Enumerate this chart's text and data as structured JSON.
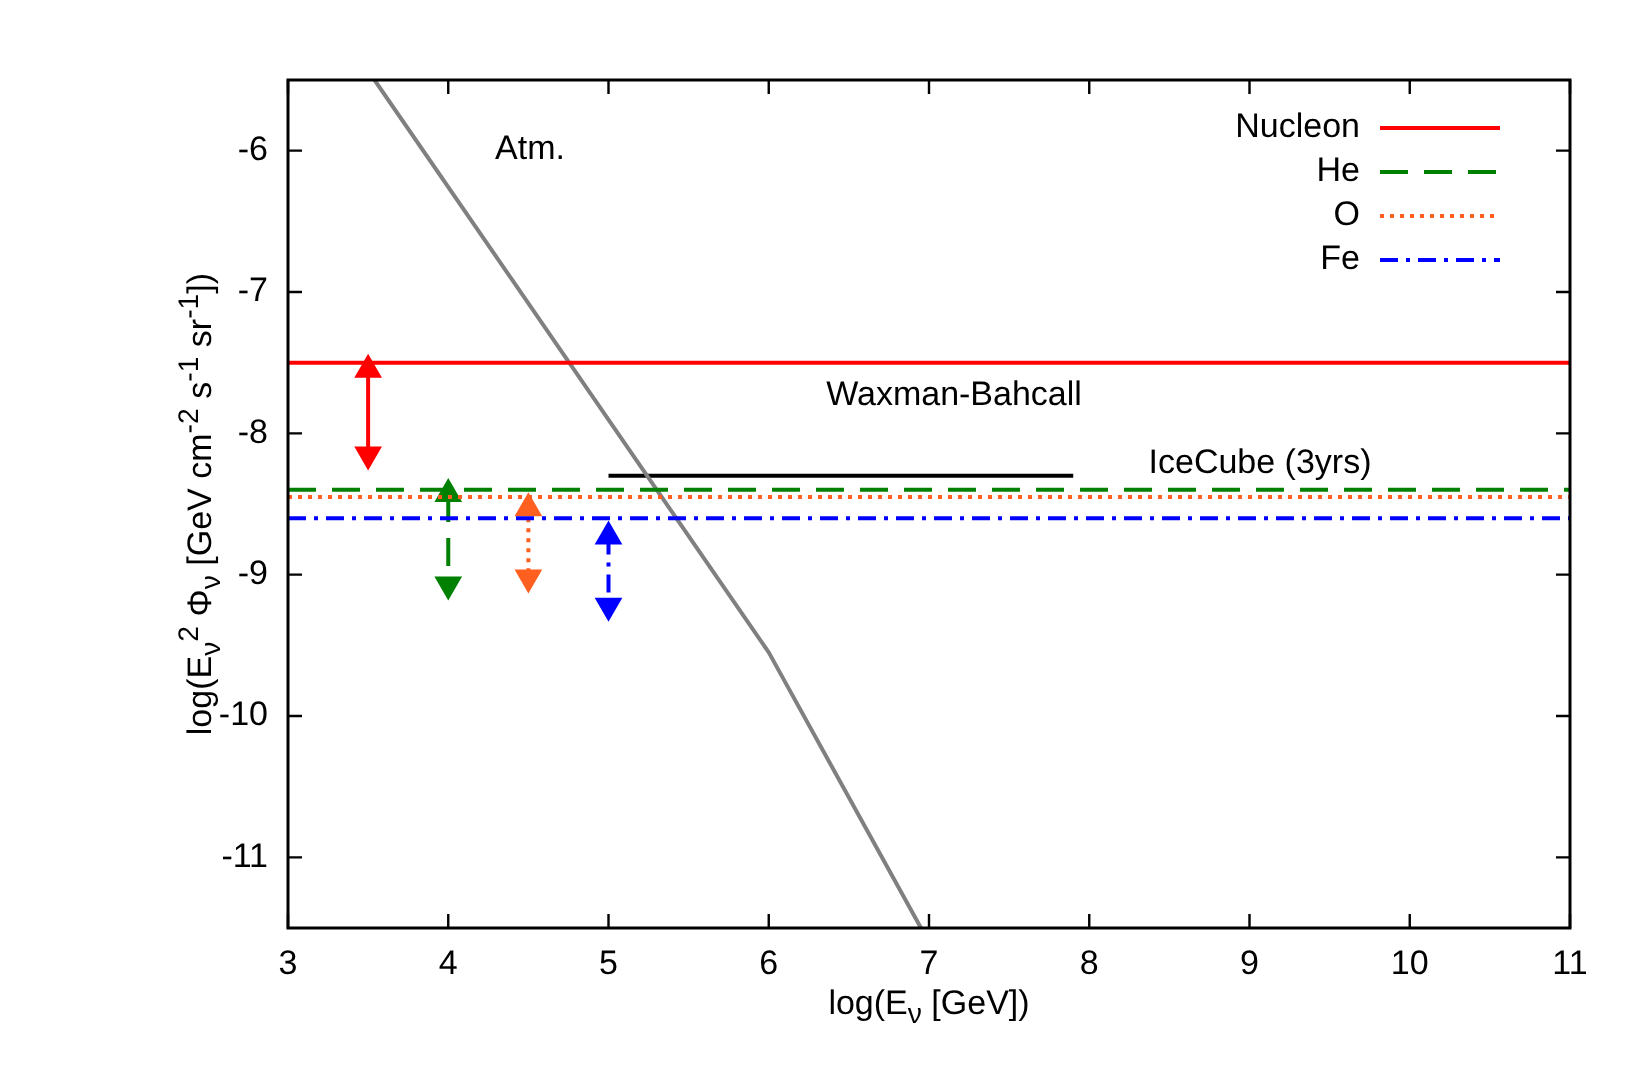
{
  "chart_data": {
    "type": "line",
    "xlabel": "log(E$_{ν}$ [GeV])",
    "ylabel": "log(E$_{ν}$$^{2}$ Φ$_{ν}$ [GeV cm$^{-2}$ s$^{-1}$ sr$^{-1}$])",
    "xlim": [
      3,
      11
    ],
    "xticks": [
      3,
      4,
      5,
      6,
      7,
      8,
      9,
      10,
      11
    ],
    "ylim": [
      -11.5,
      -5.5
    ],
    "yticks": [
      -11,
      -10,
      -9,
      -8,
      -7,
      -6
    ],
    "grid": false,
    "legend": "top right",
    "marker": "none",
    "series": [
      {
        "name": "Nucleon",
        "color": "#ff0000",
        "line_style": "solid",
        "x": [
          3,
          11
        ],
        "values": [
          -7.5,
          -7.5
        ]
      },
      {
        "name": "He",
        "color": "#008000",
        "line_style": "dashed",
        "x": [
          3,
          11
        ],
        "values": [
          -8.4,
          -8.4
        ]
      },
      {
        "name": "O",
        "color": "#ff6020",
        "line_style": "dotted",
        "x": [
          3,
          11
        ],
        "values": [
          -8.45,
          -8.45
        ]
      },
      {
        "name": "Fe",
        "color": "#0000ff",
        "line_style": "dashdot",
        "x": [
          3,
          11
        ],
        "values": [
          -8.6,
          -8.6
        ]
      },
      {
        "color": "#808080",
        "line_style": "solid",
        "x": [
          3.54,
          6,
          6.95
        ],
        "values": [
          -5.5,
          -9.55,
          -11.5
        ]
      },
      {
        "color": "#000000",
        "line_style": "solid",
        "x": [
          5,
          7.9
        ],
        "values": [
          -8.3,
          -8.3
        ]
      },
      {
        "color": "#ff0000",
        "line_style": "solid",
        "marker": "triangle",
        "x": [
          3.5,
          3.5
        ],
        "values": [
          -7.55,
          -8.15
        ]
      },
      {
        "color": "#008000",
        "line_style": "dashed",
        "marker": "triangle",
        "x": [
          4,
          4
        ],
        "values": [
          -8.43,
          -9.07
        ]
      },
      {
        "color": "#ff6020",
        "line_style": "dotted",
        "marker": "triangle",
        "x": [
          4.5,
          4.5
        ],
        "values": [
          -8.53,
          -9.02
        ]
      },
      {
        "color": "#0000ff",
        "line_style": "dashdot",
        "marker": "triangle",
        "x": [
          5,
          5
        ],
        "values": [
          -8.73,
          -9.22
        ]
      }
    ],
    "annotations": [
      "Atm.",
      "Waxman-Bahcall",
      "IceCube (3yrs)"
    ]
  }
}
